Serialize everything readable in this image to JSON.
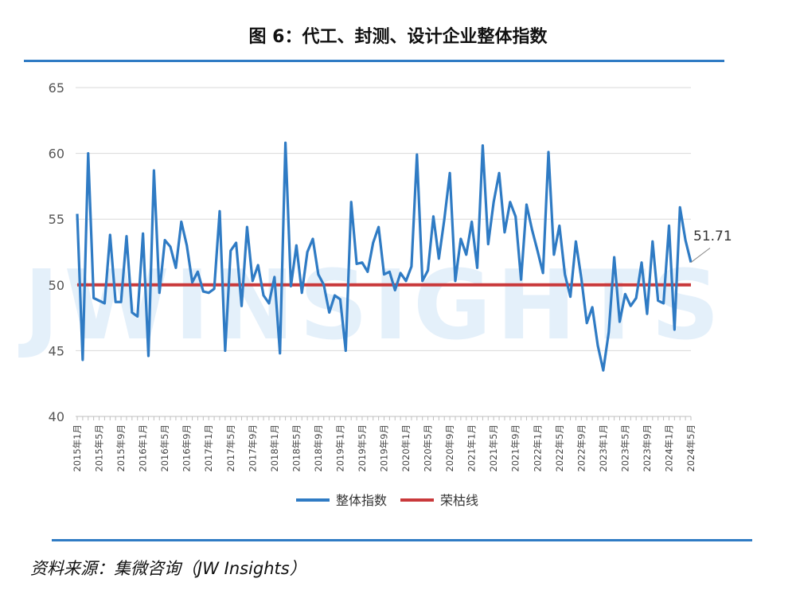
{
  "title": "图 6：代工、封测、设计企业整体指数",
  "source": "资料来源：集微咨询（JW Insights）",
  "watermark": "JWINSIGHTS",
  "colors": {
    "accent": "#2f7bc4",
    "series": "#2f7bc4",
    "threshold": "#c9393b"
  },
  "chart_data": {
    "type": "line",
    "ylim": [
      40,
      65
    ],
    "yticks": [
      40,
      45,
      50,
      55,
      60,
      65
    ],
    "x_tick_labels": [
      "2015年1月",
      "2015年5月",
      "2015年9月",
      "2016年1月",
      "2016年5月",
      "2016年9月",
      "2017年1月",
      "2017年5月",
      "2017年9月",
      "2018年1月",
      "2018年5月",
      "2018年9月",
      "2019年1月",
      "2019年5月",
      "2019年9月",
      "2020年1月",
      "2020年5月",
      "2020年9月",
      "2021年1月",
      "2021年5月",
      "2021年9月",
      "2022年1月",
      "2022年5月",
      "2022年9月",
      "2023年1月",
      "2023年5月",
      "2023年9月",
      "2024年1月",
      "2024年5月"
    ],
    "legend": [
      "整体指数",
      "荣枯线"
    ],
    "legend_position": "bottom",
    "grid": true,
    "series": [
      {
        "name": "整体指数",
        "values": [
          55.4,
          44.3,
          60.0,
          49.0,
          48.8,
          48.6,
          53.8,
          48.7,
          48.7,
          53.7,
          47.9,
          47.6,
          53.9,
          44.6,
          58.7,
          49.4,
          53.4,
          52.9,
          51.3,
          54.8,
          53.0,
          50.2,
          51.0,
          49.5,
          49.4,
          49.7,
          55.6,
          45.0,
          52.6,
          53.2,
          48.4,
          54.4,
          50.3,
          51.5,
          49.2,
          48.6,
          50.6,
          44.8,
          60.8,
          49.9,
          53.0,
          49.4,
          52.5,
          53.5,
          50.8,
          50.0,
          47.9,
          49.2,
          48.9,
          45.0,
          56.3,
          51.6,
          51.7,
          51.0,
          53.2,
          54.4,
          50.8,
          51.0,
          49.6,
          50.9,
          50.3,
          51.4,
          59.9,
          50.3,
          51.1,
          55.2,
          52.0,
          55.0,
          58.5,
          50.3,
          53.5,
          52.3,
          54.8,
          51.3,
          60.6,
          53.1,
          56.3,
          58.5,
          54.0,
          56.3,
          55.2,
          50.4,
          56.1,
          54.2,
          52.6,
          50.9,
          60.1,
          52.3,
          54.5,
          50.8,
          49.1,
          53.3,
          50.5,
          47.1,
          48.3,
          45.4,
          43.5,
          46.4,
          52.1,
          47.2,
          49.3,
          48.4,
          49.0,
          51.7,
          47.8,
          53.3,
          48.8,
          48.6,
          54.5,
          46.6,
          55.9,
          53.4,
          51.71
        ]
      },
      {
        "name": "荣枯线",
        "values": [
          50,
          50
        ]
      }
    ],
    "annotation": {
      "label": "51.71",
      "value": 51.71
    }
  }
}
